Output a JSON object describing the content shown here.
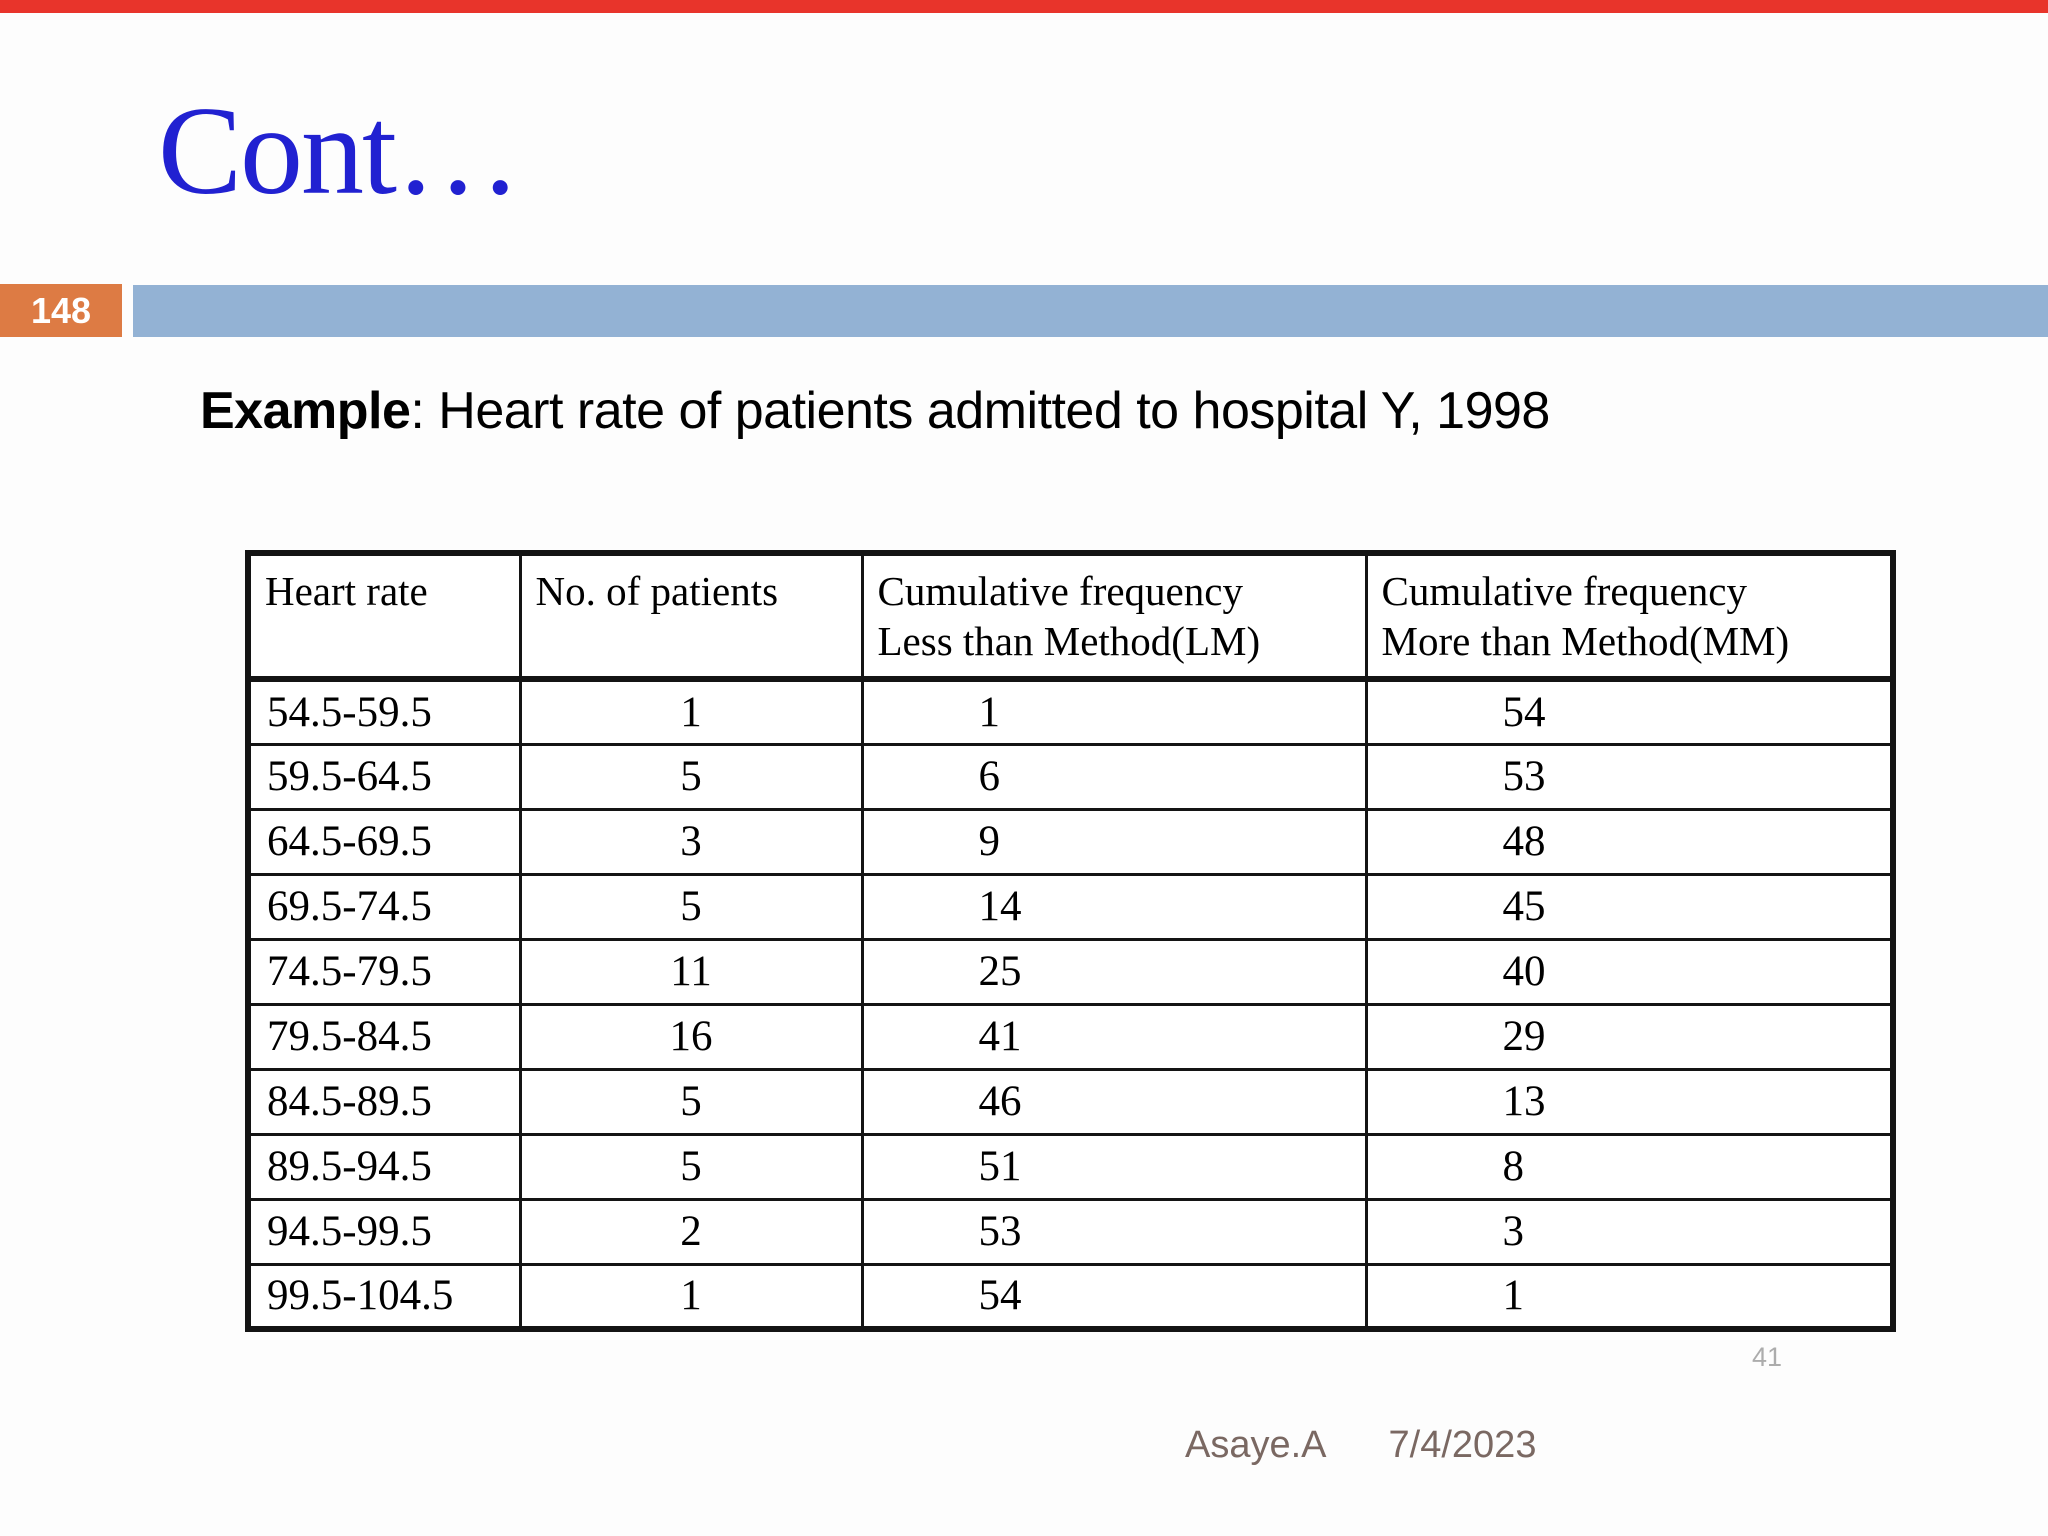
{
  "slide": {
    "title": "Cont…",
    "page_number": "148",
    "heading": {
      "bold": "Example",
      "rest": ": Heart rate of patients admitted to hospital Y, 1998"
    },
    "footer": {
      "author": "Asaye.A",
      "date": "7/4/2023"
    },
    "watermark": "41"
  },
  "colors": {
    "red_strip": "#E8342B",
    "badge_orange": "#DD7B44",
    "bar_blue": "#93B2D4",
    "title_blue": "#2121D1",
    "footer_text": "#7A6862",
    "table_border": "#141414",
    "text": "#111111",
    "watermark_gray": "#999999",
    "page_bg": "#FDFDFD"
  },
  "table": {
    "headers": [
      [
        "Heart rate"
      ],
      [
        "No. of patients"
      ],
      [
        "Cumulative frequency",
        "Less than Method(LM)"
      ],
      [
        "Cumulative frequency",
        "More than Method(MM)"
      ]
    ],
    "rows": [
      [
        "54.5-59.5",
        "1",
        "1",
        "54"
      ],
      [
        "59.5-64.5",
        "5",
        "6",
        "53"
      ],
      [
        "64.5-69.5",
        "3",
        "9",
        "48"
      ],
      [
        "69.5-74.5",
        "5",
        "14",
        "45"
      ],
      [
        "74.5-79.5",
        "11",
        "25",
        "40"
      ],
      [
        "79.5-84.5",
        "16",
        "41",
        "29"
      ],
      [
        "84.5-89.5",
        "5",
        "46",
        "13"
      ],
      [
        "89.5-94.5",
        "5",
        "51",
        "8"
      ],
      [
        "94.5-99.5",
        "2",
        "53",
        "3"
      ],
      [
        "99.5-104.5",
        "1",
        "54",
        "1"
      ]
    ]
  }
}
